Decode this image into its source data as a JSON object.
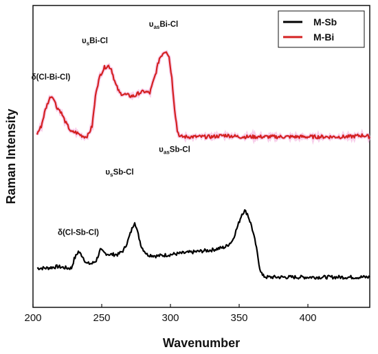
{
  "chart_data": {
    "type": "line",
    "title": "",
    "xlabel": "Wavenumber",
    "ylabel": "Raman Intensity",
    "xlim": [
      200,
      445
    ],
    "ylim": [
      0,
      1
    ],
    "xticks": [
      200,
      250,
      300,
      350,
      400
    ],
    "grid": false,
    "legend_position": "top-right",
    "series": [
      {
        "name": "M-Sb",
        "color": "#000000",
        "points": [
          [
            203,
            0.13
          ],
          [
            210,
            0.13
          ],
          [
            218,
            0.135
          ],
          [
            225,
            0.13
          ],
          [
            228,
            0.13
          ],
          [
            230,
            0.16
          ],
          [
            233,
            0.185
          ],
          [
            236,
            0.17
          ],
          [
            239,
            0.145
          ],
          [
            243,
            0.145
          ],
          [
            246,
            0.155
          ],
          [
            249,
            0.19
          ],
          [
            252,
            0.18
          ],
          [
            256,
            0.175
          ],
          [
            262,
            0.175
          ],
          [
            266,
            0.19
          ],
          [
            269,
            0.22
          ],
          [
            272,
            0.26
          ],
          [
            274,
            0.285
          ],
          [
            276,
            0.25
          ],
          [
            279,
            0.2
          ],
          [
            283,
            0.175
          ],
          [
            290,
            0.17
          ],
          [
            300,
            0.175
          ],
          [
            310,
            0.18
          ],
          [
            320,
            0.185
          ],
          [
            330,
            0.19
          ],
          [
            340,
            0.2
          ],
          [
            345,
            0.22
          ],
          [
            349,
            0.27
          ],
          [
            352,
            0.31
          ],
          [
            354,
            0.32
          ],
          [
            356,
            0.31
          ],
          [
            359,
            0.27
          ],
          [
            362,
            0.21
          ],
          [
            365,
            0.13
          ],
          [
            367,
            0.105
          ],
          [
            370,
            0.1
          ],
          [
            380,
            0.1
          ],
          [
            390,
            0.1
          ],
          [
            400,
            0.1
          ],
          [
            410,
            0.1
          ],
          [
            420,
            0.1
          ],
          [
            430,
            0.1
          ],
          [
            440,
            0.1
          ],
          [
            445,
            0.1
          ]
        ]
      },
      {
        "name": "M-Bi",
        "color": "#d42020",
        "points": [
          [
            203,
            0.575
          ],
          [
            206,
            0.6
          ],
          [
            209,
            0.655
          ],
          [
            211,
            0.68
          ],
          [
            213,
            0.7
          ],
          [
            215,
            0.695
          ],
          [
            217,
            0.665
          ],
          [
            220,
            0.65
          ],
          [
            224,
            0.61
          ],
          [
            228,
            0.58
          ],
          [
            231,
            0.58
          ],
          [
            235,
            0.57
          ],
          [
            238,
            0.565
          ],
          [
            240,
            0.57
          ],
          [
            243,
            0.6
          ],
          [
            246,
            0.72
          ],
          [
            249,
            0.77
          ],
          [
            252,
            0.795
          ],
          [
            255,
            0.8
          ],
          [
            257,
            0.79
          ],
          [
            260,
            0.74
          ],
          [
            263,
            0.71
          ],
          [
            267,
            0.705
          ],
          [
            271,
            0.7
          ],
          [
            274,
            0.7
          ],
          [
            277,
            0.71
          ],
          [
            281,
            0.715
          ],
          [
            285,
            0.71
          ],
          [
            289,
            0.77
          ],
          [
            292,
            0.825
          ],
          [
            295,
            0.845
          ],
          [
            297,
            0.85
          ],
          [
            299,
            0.83
          ],
          [
            301,
            0.76
          ],
          [
            303,
            0.66
          ],
          [
            305,
            0.585
          ],
          [
            307,
            0.565
          ],
          [
            312,
            0.565
          ],
          [
            320,
            0.565
          ],
          [
            330,
            0.565
          ],
          [
            340,
            0.57
          ],
          [
            350,
            0.565
          ],
          [
            360,
            0.565
          ],
          [
            370,
            0.565
          ],
          [
            380,
            0.565
          ],
          [
            390,
            0.565
          ],
          [
            400,
            0.565
          ],
          [
            410,
            0.565
          ],
          [
            420,
            0.565
          ],
          [
            430,
            0.565
          ],
          [
            440,
            0.57
          ],
          [
            445,
            0.565
          ]
        ]
      }
    ],
    "annotations": [
      {
        "main": "δ(Cl-Bi-Cl)",
        "sub": "",
        "after": "",
        "x": 213,
        "y": 0.755
      },
      {
        "main": "υ",
        "sub": "s",
        "after": "Bi-Cl",
        "x": 245,
        "y": 0.875
      },
      {
        "main": "υ",
        "sub": "as",
        "after": "Bi-Cl",
        "x": 295,
        "y": 0.93
      },
      {
        "main": "υ",
        "sub": "as",
        "after": "Sb-Cl",
        "x": 303,
        "y": 0.515
      },
      {
        "main": "υ",
        "sub": "s",
        "after": "Sb-Cl",
        "x": 263,
        "y": 0.44
      },
      {
        "main": "δ(Cl-Sb-Cl)",
        "sub": "",
        "after": "",
        "x": 233,
        "y": 0.24
      }
    ]
  }
}
